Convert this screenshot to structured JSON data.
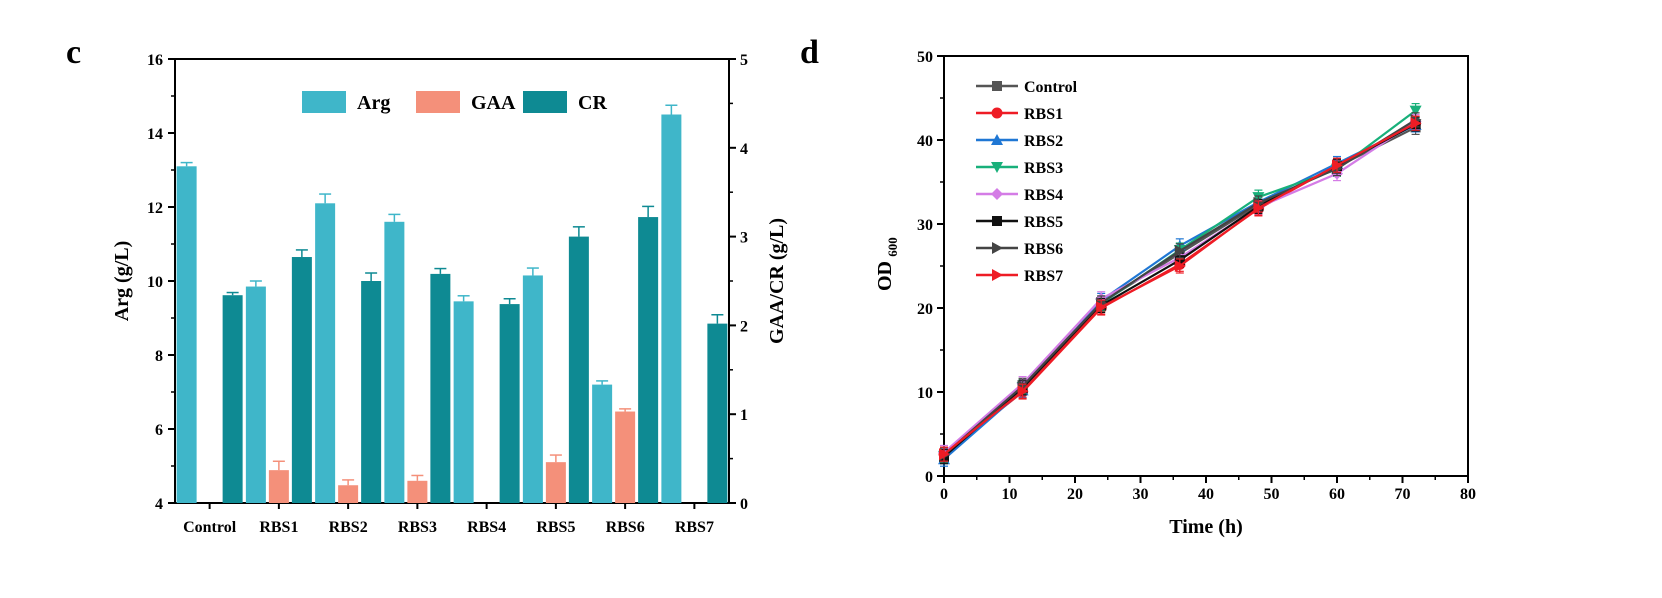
{
  "chart_data": [
    {
      "type": "bar",
      "panel_label": "c",
      "categories": [
        "Control",
        "RBS1",
        "RBS2",
        "RBS3",
        "RBS4",
        "RBS5",
        "RBS6",
        "RBS7"
      ],
      "ylabel": "Arg (g/L)",
      "y2label": "GAA/CR (g/L)",
      "ylim": [
        4,
        16
      ],
      "y2lim": [
        0,
        5
      ],
      "yticks": [
        4,
        6,
        8,
        10,
        12,
        14,
        16
      ],
      "y2ticks": [
        0,
        1,
        2,
        3,
        4,
        5
      ],
      "legend_position": "top-center",
      "series": [
        {
          "name": "Arg",
          "axis": "left",
          "color": "#3fb6c9",
          "values": [
            13.1,
            9.85,
            12.1,
            11.6,
            9.45,
            10.15,
            7.2,
            14.5
          ],
          "errors": [
            0.1,
            0.15,
            0.25,
            0.2,
            0.15,
            0.2,
            0.1,
            0.25
          ]
        },
        {
          "name": "GAA",
          "axis": "right",
          "color": "#f4907a",
          "values": [
            0,
            0.37,
            0.2,
            0.25,
            0,
            0.46,
            1.03,
            0
          ],
          "errors": [
            0,
            0.1,
            0.06,
            0.06,
            0,
            0.08,
            0.03,
            0
          ]
        },
        {
          "name": "CR",
          "axis": "right",
          "color": "#0e8a93",
          "values": [
            2.34,
            2.77,
            2.5,
            2.58,
            2.24,
            3.0,
            3.22,
            2.02
          ],
          "errors": [
            0.03,
            0.08,
            0.09,
            0.06,
            0.06,
            0.11,
            0.12,
            0.1
          ]
        }
      ]
    },
    {
      "type": "line",
      "panel_label": "d",
      "xlabel": "Time (h)",
      "ylabel_main": "OD",
      "ylabel_sub": "600",
      "xlim": [
        0,
        80
      ],
      "ylim": [
        0,
        50
      ],
      "xticks": [
        0,
        10,
        20,
        30,
        40,
        50,
        60,
        70,
        80
      ],
      "yticks": [
        0,
        10,
        20,
        30,
        40,
        50
      ],
      "legend_position": "top-left",
      "x": [
        0,
        12,
        24,
        36,
        48,
        60,
        72
      ],
      "series": [
        {
          "name": "Control",
          "color": "#555555",
          "marker": "square",
          "values": [
            2.5,
            10.8,
            20.6,
            26.5,
            32.3,
            36.8,
            41.5
          ]
        },
        {
          "name": "RBS1",
          "color": "#ee1c25",
          "marker": "circle",
          "values": [
            2.6,
            10.0,
            20.0,
            25.2,
            31.8,
            37.0,
            42.0
          ]
        },
        {
          "name": "RBS2",
          "color": "#1f77d4",
          "marker": "triangle-up",
          "values": [
            2.0,
            10.2,
            20.9,
            27.4,
            32.6,
            37.2,
            41.8
          ]
        },
        {
          "name": "RBS3",
          "color": "#18b07a",
          "marker": "triangle-down",
          "values": [
            2.4,
            10.6,
            20.5,
            26.9,
            33.2,
            36.5,
            43.5
          ]
        },
        {
          "name": "RBS4",
          "color": "#d47ce6",
          "marker": "diamond",
          "values": [
            2.8,
            11.0,
            21.1,
            26.0,
            32.0,
            36.0,
            42.2
          ]
        },
        {
          "name": "RBS5",
          "color": "#111111",
          "marker": "square",
          "values": [
            2.3,
            10.5,
            20.3,
            25.7,
            32.1,
            36.9,
            41.9
          ]
        },
        {
          "name": "RBS6",
          "color": "#444444",
          "marker": "triangle-right",
          "values": [
            2.5,
            10.7,
            20.6,
            26.8,
            32.5,
            36.6,
            42.4
          ]
        },
        {
          "name": "RBS7",
          "color": "#ee1c25",
          "marker": "triangle-right",
          "values": [
            2.6,
            10.1,
            20.1,
            25.0,
            31.9,
            37.0,
            42.0
          ]
        }
      ]
    }
  ]
}
